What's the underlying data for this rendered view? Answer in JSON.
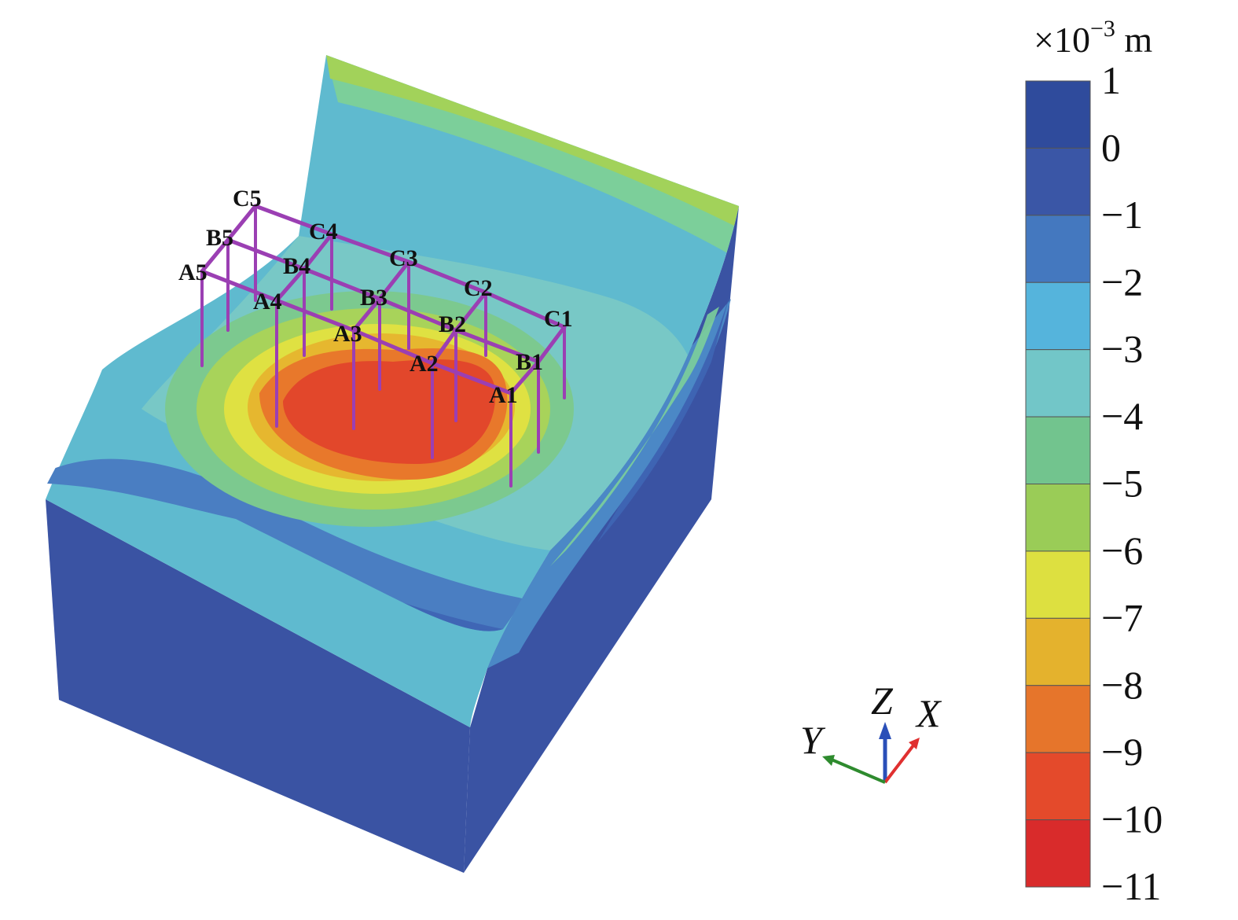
{
  "unit": {
    "prefix": "×10",
    "exponent": "−3",
    "suffix": " m"
  },
  "legend": {
    "levels": [
      {
        "label": "1",
        "color": "#2f4b9c"
      },
      {
        "label": "0",
        "color": "#3a56a6"
      },
      {
        "label": "−1",
        "color": "#4478bf"
      },
      {
        "label": "−2",
        "color": "#55b4dc"
      },
      {
        "label": "−3",
        "color": "#72c6c8"
      },
      {
        "label": "−4",
        "color": "#72c48e"
      },
      {
        "label": "−5",
        "color": "#9acc57"
      },
      {
        "label": "−6",
        "color": "#dde040"
      },
      {
        "label": "−7",
        "color": "#e4b22d"
      },
      {
        "label": "−8",
        "color": "#e6752b"
      },
      {
        "label": "−9",
        "color": "#e44a2b"
      },
      {
        "label": "−10",
        "color": "#df2a2a"
      },
      {
        "label": "−11",
        "color": ""
      }
    ]
  },
  "axes": {
    "x": "X",
    "y": "Y",
    "z": "Z"
  },
  "axis_colors": {
    "x": "#e03030",
    "y": "#2e8b2e",
    "z": "#2a4fb8"
  },
  "frame_color": "#9b3fb3",
  "nodes": {
    "A1": "A1",
    "A2": "A2",
    "A3": "A3",
    "A4": "A4",
    "A5": "A5",
    "B1": "B1",
    "B2": "B2",
    "B3": "B3",
    "B4": "B4",
    "B5": "B5",
    "C1": "C1",
    "C2": "C2",
    "C3": "C3",
    "C4": "C4",
    "C5": "C5"
  }
}
